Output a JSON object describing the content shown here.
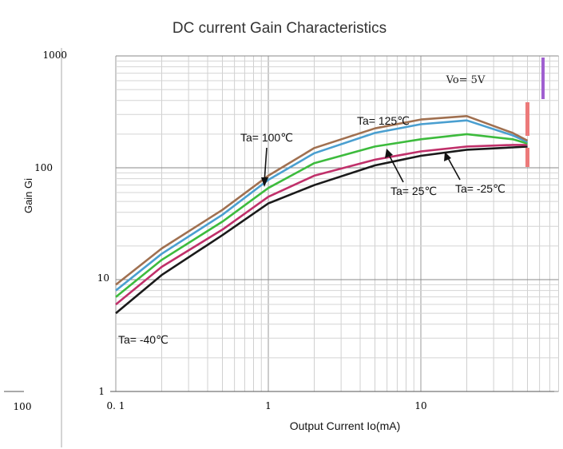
{
  "chart_data": {
    "type": "line",
    "title": "DC current Gain Characteristics",
    "xlabel": "Output Current   Io(mA)",
    "ylabel": "Gain Gi",
    "x_scale": "log",
    "y_scale": "log",
    "xlim": [
      0.1,
      80
    ],
    "ylim": [
      1,
      1000
    ],
    "x_ticks": [
      "0. 1",
      "1",
      "10"
    ],
    "y_ticks": [
      "1000",
      "100",
      "10",
      "1"
    ],
    "stray_tick_label": "100",
    "condition_label": "Vo= 5V",
    "grid": true,
    "legend": "none",
    "series": [
      {
        "name": "Ta= -40℃",
        "color": "#1a1a1a",
        "x": [
          0.1,
          0.2,
          0.5,
          1,
          2,
          5,
          10,
          20,
          40,
          50
        ],
        "y": [
          5,
          11,
          25,
          48,
          70,
          105,
          128,
          145,
          152,
          155
        ]
      },
      {
        "name": "Ta= -25℃",
        "color": "#c0306a",
        "x": [
          0.1,
          0.2,
          0.5,
          1,
          2,
          5,
          10,
          20,
          40,
          50
        ],
        "y": [
          6,
          13,
          28,
          55,
          85,
          118,
          140,
          155,
          160,
          160
        ]
      },
      {
        "name": "Ta= 25℃",
        "color": "#3dbb3d",
        "x": [
          0.1,
          0.2,
          0.5,
          1,
          2,
          5,
          10,
          20,
          40,
          50
        ],
        "y": [
          7,
          15,
          33,
          66,
          110,
          155,
          180,
          200,
          180,
          165
        ]
      },
      {
        "name": "Ta= 100℃",
        "color": "#4a9fd0",
        "x": [
          0.1,
          0.2,
          0.5,
          1,
          2,
          5,
          10,
          20,
          40,
          50
        ],
        "y": [
          8,
          17,
          38,
          78,
          135,
          205,
          245,
          265,
          195,
          170
        ]
      },
      {
        "name": "Ta= 125℃",
        "color": "#a07050",
        "x": [
          0.1,
          0.2,
          0.5,
          1,
          2,
          5,
          10,
          20,
          40,
          50
        ],
        "y": [
          9,
          19,
          42,
          85,
          150,
          225,
          270,
          290,
          205,
          175
        ]
      }
    ],
    "annotations": [
      {
        "text": "Ta= 100℃",
        "target_series": 3
      },
      {
        "text": "Ta= 125℃",
        "target_series": 4
      },
      {
        "text": "Ta= 25℃",
        "target_series": 2
      },
      {
        "text": "Ta= -25℃",
        "target_series": 1
      },
      {
        "text": "Ta= -40℃",
        "target_series": 0
      }
    ]
  }
}
